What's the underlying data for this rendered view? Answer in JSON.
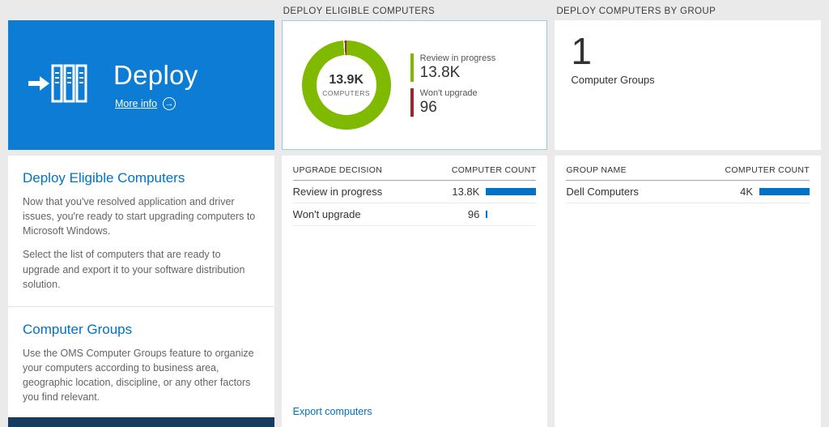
{
  "colors": {
    "accent": "#0072c6",
    "hero_blue": "#0c7cd5",
    "bar_blue": "#0072c6",
    "footer_strip": "#153c60"
  },
  "left_column": {
    "hero": {
      "title": "Deploy",
      "more_info_label": "More info",
      "more_info_arrow": "→"
    },
    "sections": [
      {
        "heading": "Deploy Eligible Computers",
        "paragraphs": [
          "Now that you've resolved application and driver issues, you're ready to start upgrading computers to Microsoft Windows.",
          "Select the list of computers that are ready to upgrade and export it to your software distribution solution."
        ]
      },
      {
        "heading": "Computer Groups",
        "paragraphs": [
          "Use the OMS Computer Groups feature to organize your computers according to business area, geographic location, discipline, or any other factors you find relevant."
        ]
      }
    ]
  },
  "middle_column": {
    "header": "DEPLOY ELIGIBLE COMPUTERS",
    "table": {
      "col1": "UPGRADE DECISION",
      "col2": "COMPUTER COUNT",
      "rows": [
        {
          "label": "Review in progress",
          "value": "13.8K",
          "bar_pct": 100
        },
        {
          "label": "Won't upgrade",
          "value": "96",
          "bar_pct": 2
        }
      ]
    },
    "export_link": "Export computers"
  },
  "right_column": {
    "header": "DEPLOY COMPUTERS BY GROUP",
    "tile": {
      "value": "1",
      "label": "Computer Groups"
    },
    "table": {
      "col1": "GROUP NAME",
      "col2": "COMPUTER COUNT",
      "rows": [
        {
          "label": "Dell Computers",
          "value": "4K",
          "bar_pct": 100
        }
      ]
    }
  },
  "chart_data": {
    "type": "pie",
    "title": "Deploy eligible computers",
    "center_value": "13.9K",
    "center_label": "COMPUTERS",
    "legend_position": "right",
    "slices": [
      {
        "label": "Review in progress",
        "value": 13800,
        "display": "13.8K",
        "color": "#7fba00"
      },
      {
        "label": "Won't upgrade",
        "value": 96,
        "display": "96",
        "color": "#a0262d"
      }
    ]
  }
}
